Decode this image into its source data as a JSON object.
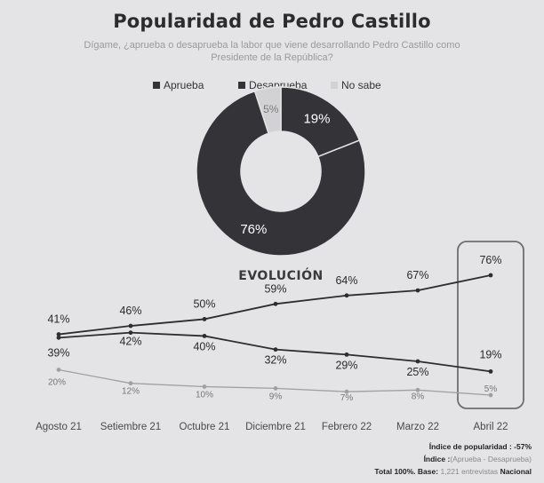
{
  "title": "Popularidad de Pedro Castillo",
  "subtitle": "Dígame, ¿aprueba o desaprueba la labor que viene desarrollando Pedro Castillo como Presidente de la República?",
  "colors": {
    "aprueba": "#343438",
    "desaprueba": "#343438",
    "nosabe": "#d2d2d4",
    "box": "#6e6e70",
    "background": "#e4e3e5"
  },
  "chart_data": [
    {
      "type": "pie",
      "title": "",
      "legend": [
        "Aprueba",
        "Desaprueba",
        "No sabe"
      ],
      "legend_position": "top",
      "slices": [
        {
          "name": "Aprueba",
          "value": 19,
          "label": "19%"
        },
        {
          "name": "Desaprueba",
          "value": 76,
          "label": "76%"
        },
        {
          "name": "No sabe",
          "value": 5,
          "label": "5%"
        }
      ]
    },
    {
      "type": "line",
      "title": "EVOLUCIÓN",
      "categories": [
        "Agosto 21",
        "Setiembre 21",
        "Octubre 21",
        "Diciembre 21",
        "Febrero 22",
        "Marzo 22",
        "Abril 22"
      ],
      "ylim": [
        0,
        100
      ],
      "grid": false,
      "highlight": "Abril 22",
      "series": [
        {
          "key": "desaprueba",
          "values": [
            41,
            46,
            50,
            59,
            64,
            67,
            76
          ],
          "labels": [
            "41%",
            "46%",
            "50%",
            "59%",
            "64%",
            "67%",
            "76%"
          ]
        },
        {
          "key": "aprueba",
          "values": [
            39,
            42,
            40,
            32,
            29,
            25,
            19
          ],
          "labels": [
            "39%",
            "42%",
            "40%",
            "32%",
            "29%",
            "25%",
            "19%"
          ]
        },
        {
          "key": "nosabe",
          "values": [
            20,
            12,
            10,
            9,
            7,
            8,
            5
          ],
          "labels": [
            "20%",
            "12%",
            "10%",
            "9%",
            "7%",
            "8%",
            "5%"
          ]
        }
      ]
    }
  ],
  "footer": {
    "index_label": "Índice de popularidad :",
    "index_value": "-57%",
    "index_def_label": "Índice :",
    "index_def_text": "(Aprueba - Desaprueba)",
    "total": "Total 100%.",
    "base_label": "Base:",
    "base_text": "1,221 entrevistas",
    "base_scope": "Nacional"
  }
}
